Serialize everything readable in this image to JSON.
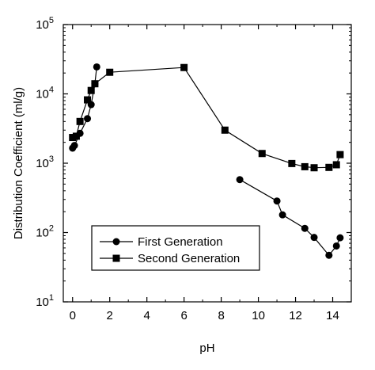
{
  "chart_data": {
    "type": "line",
    "xlabel": "pH",
    "ylabel": "Distribution Coefficient (ml/g)",
    "xlim": [
      -0.5,
      15
    ],
    "ylim": [
      10,
      100000
    ],
    "y_scale": "log",
    "grid": false,
    "legend_position": "bottom-left",
    "x_ticks": [
      0,
      2,
      4,
      6,
      8,
      10,
      12,
      14
    ],
    "x_tick_labels": [
      "0",
      "2",
      "4",
      "6",
      "8",
      "10",
      "12",
      "14"
    ],
    "y_ticks": [
      10,
      100,
      1000,
      10000,
      100000
    ],
    "y_tick_labels": [
      {
        "base": "10",
        "exp": "1"
      },
      {
        "base": "10",
        "exp": "2"
      },
      {
        "base": "10",
        "exp": "3"
      },
      {
        "base": "10",
        "exp": "4"
      },
      {
        "base": "10",
        "exp": "5"
      }
    ],
    "series": [
      {
        "name": "First Generation",
        "marker": "circle",
        "segments": [
          [
            [
              0.0,
              1650
            ],
            [
              0.1,
              1800
            ],
            [
              0.4,
              2700
            ],
            [
              0.8,
              4400
            ],
            [
              1.0,
              7000
            ],
            [
              1.2,
              14000
            ],
            [
              1.3,
              24500
            ]
          ],
          [
            [
              9.0,
              580
            ],
            [
              11.0,
              285
            ],
            [
              11.3,
              180
            ],
            [
              12.5,
              115
            ],
            [
              13.0,
              85
            ],
            [
              13.8,
              47
            ],
            [
              14.2,
              64
            ],
            [
              14.4,
              84
            ]
          ]
        ]
      },
      {
        "name": "Second Generation",
        "marker": "square",
        "segments": [
          [
            [
              0.0,
              2350
            ],
            [
              0.2,
              2450
            ],
            [
              0.4,
              4000
            ],
            [
              0.8,
              8200
            ],
            [
              1.0,
              11200
            ],
            [
              1.2,
              14000
            ],
            [
              2.0,
              20500
            ],
            [
              6.0,
              24000
            ],
            [
              8.2,
              3000
            ],
            [
              10.2,
              1380
            ],
            [
              11.8,
              990
            ],
            [
              12.5,
              890
            ],
            [
              13.0,
              860
            ],
            [
              13.8,
              870
            ],
            [
              14.2,
              950
            ],
            [
              14.4,
              1330
            ]
          ]
        ]
      }
    ]
  }
}
